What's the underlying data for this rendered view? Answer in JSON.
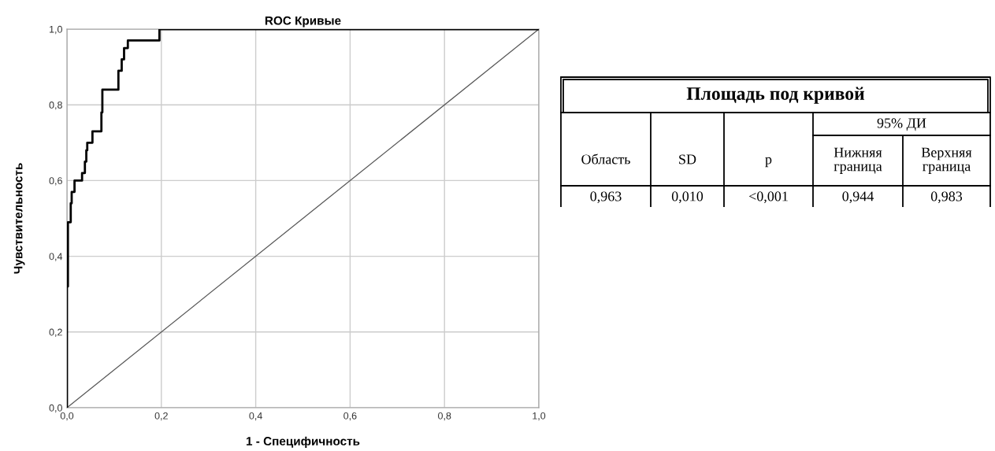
{
  "chart_data": [
    {
      "type": "line",
      "title": "ROC Кривые",
      "xlabel": "1 - Специфичность",
      "ylabel": "Чувствительность",
      "xlim": [
        0,
        1
      ],
      "ylim": [
        0,
        1
      ],
      "xticks": [
        {
          "value": 0,
          "label": "0,0"
        },
        {
          "value": 0.2,
          "label": "0,2"
        },
        {
          "value": 0.4,
          "label": "0,4"
        },
        {
          "value": 0.6,
          "label": "0,6"
        },
        {
          "value": 0.8,
          "label": "0,8"
        },
        {
          "value": 1,
          "label": "1,0"
        }
      ],
      "yticks": [
        {
          "value": 0,
          "label": "0,0"
        },
        {
          "value": 0.2,
          "label": "0,2"
        },
        {
          "value": 0.4,
          "label": "0,4"
        },
        {
          "value": 0.6,
          "label": "0,6"
        },
        {
          "value": 0.8,
          "label": "0,8"
        },
        {
          "value": 1,
          "label": "1,0"
        }
      ],
      "grid": true,
      "series": [
        {
          "type": "step",
          "color": "#000000",
          "x": [
            0,
            0,
            0.002,
            0.008,
            0.01,
            0.016,
            0.032,
            0.038,
            0.041,
            0.043,
            0.054,
            0.073,
            0.075,
            0.109,
            0.116,
            0.121,
            0.129,
            0.196,
            1.0
          ],
          "values": [
            0,
            0.32,
            0.49,
            0.54,
            0.57,
            0.6,
            0.62,
            0.65,
            0.68,
            0.7,
            0.73,
            0.78,
            0.84,
            0.89,
            0.92,
            0.95,
            0.97,
            1.0,
            1.0
          ]
        },
        {
          "type": "line",
          "color": "#555555",
          "x": [
            0,
            1
          ],
          "values": [
            0,
            1
          ]
        }
      ]
    },
    {
      "type": "other",
      "title": "Площадь под кривой",
      "annotations": [
        "95% ДИ",
        "Область",
        "SD",
        "p",
        "Нижняя\nграница",
        "Верхняя\nграница",
        "0,963",
        "0,010",
        "<0,001",
        "0,944",
        "0,983"
      ]
    }
  ]
}
